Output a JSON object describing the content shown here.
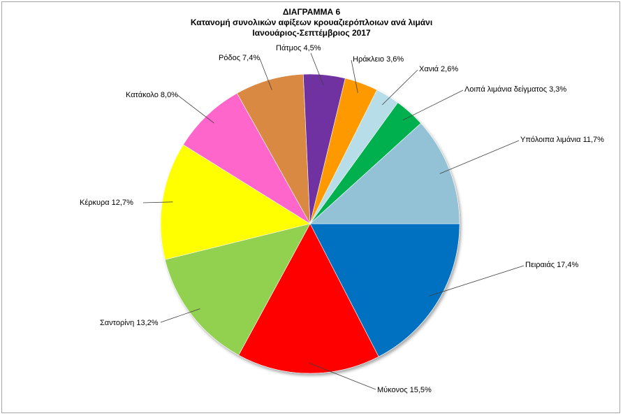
{
  "chart_data": {
    "type": "pie",
    "title": "ΔΙΑΓΡΑΜΜΑ 6",
    "subtitle": "Κατανομή συνολικών αφίξεων κρουαζιερόπλοιων ανά  λιμάνι",
    "subtitle2": "Ιανουάριος-Σεπτέμβριος 2017",
    "slices": [
      {
        "label": "Πειραιάς",
        "value": 17.4,
        "text": "Πειραιάς 17,4%",
        "color": "#0070C0"
      },
      {
        "label": "Μύκονος",
        "value": 15.5,
        "text": "Μύκονος 15,5%",
        "color": "#FF0000"
      },
      {
        "label": "Σαντορίνη",
        "value": 13.2,
        "text": "Σαντορίνη 13,2%",
        "color": "#92D050"
      },
      {
        "label": "Κέρκυρα",
        "value": 12.7,
        "text": "Κέρκυρα 12,7%",
        "color": "#FFFF00"
      },
      {
        "label": "Κατάκολο",
        "value": 8.0,
        "text": "Κατάκολο 8,0%",
        "color": "#FF66CC"
      },
      {
        "label": "Ρόδος",
        "value": 7.4,
        "text": "Ρόδος 7,4%",
        "color": "#D98943"
      },
      {
        "label": "Πάτμος",
        "value": 4.5,
        "text": "Πάτμος 4,5%",
        "color": "#7030A0"
      },
      {
        "label": "Ηράκλειο",
        "value": 3.6,
        "text": "Ηράκλειο 3,6%",
        "color": "#FF9900"
      },
      {
        "label": "Χανιά",
        "value": 2.6,
        "text": "Χανιά 2,6%",
        "color": "#B7DEE8"
      },
      {
        "label": "Λοιπά λιμάνια δείγματος",
        "value": 3.3,
        "text": "Λοιπά λιμάνια δείγματος 3,3%",
        "color": "#00B050"
      },
      {
        "label": "Υπόλοιπα λιμάνια",
        "value": 11.7,
        "text": "Υπόλοιπα λιμάνια 11,7%",
        "color": "#93C2D6"
      }
    ]
  }
}
